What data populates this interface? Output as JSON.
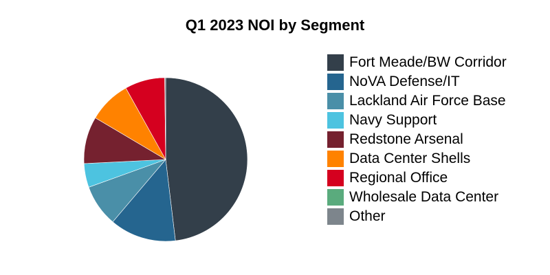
{
  "chart_data": {
    "type": "pie",
    "title": "Q1 2023 NOI by Segment",
    "categories": [
      "Fort Meade/BW Corridor",
      "NoVA Defense/IT",
      "Lackland Air Force Base",
      "Navy Support",
      "Redstone Arsenal",
      "Data Center Shells",
      "Regional Office",
      "Wholesale Data Center",
      "Other"
    ],
    "values": [
      48.1,
      13.1,
      8.3,
      4.7,
      9.3,
      8.4,
      7.9,
      0.0,
      0.2
    ],
    "colors": [
      "#333f4a",
      "#25658f",
      "#4a8fa8",
      "#4dc3e0",
      "#75212f",
      "#ff8200",
      "#d5001f",
      "#5aab7d",
      "#7d858c"
    ],
    "unit": "%",
    "start_angle": "12 o'clock, clockwise",
    "legend_position": "right",
    "xlabel": "",
    "ylabel": ""
  }
}
